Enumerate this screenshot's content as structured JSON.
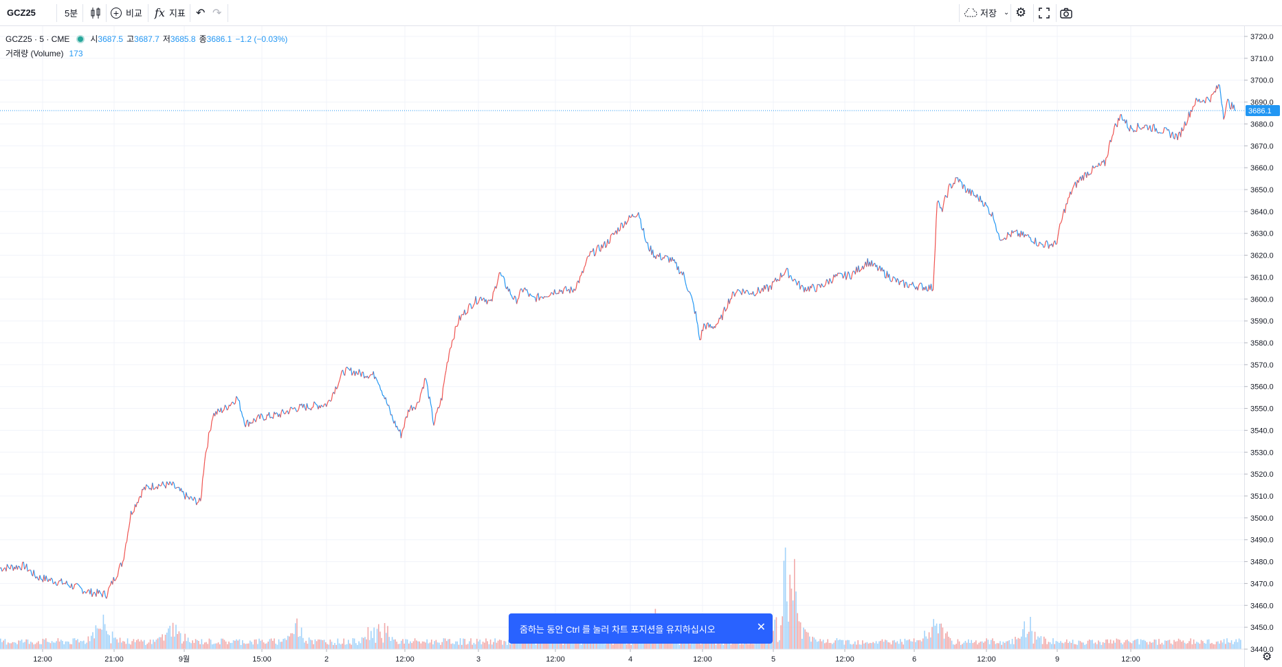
{
  "toolbar": {
    "symbol": "GCZ25",
    "interval": "5분",
    "compare_label": "비교",
    "indicators_label": "지표",
    "save_label": "저장"
  },
  "legend": {
    "title": "GCZ25 · 5 · CME",
    "open_label": "시",
    "open": "3687.5",
    "high_label": "고",
    "high": "3687.7",
    "low_label": "저",
    "low": "3685.8",
    "close_label": "종",
    "close": "3686.1",
    "change": "−1.2 (−0.03%)",
    "volume_label": "거래량 (Volume)",
    "volume": "173"
  },
  "toast": {
    "message": "줌하는 동안 Ctrl 를 눌러 차트 포지션을 유지하십시오"
  },
  "colors": {
    "up": "#ef5350",
    "down": "#2196f3",
    "accent": "#2962ff"
  },
  "chart_data": {
    "type": "line",
    "title": "GCZ25 · 5 · CME",
    "last_price": "3686.1",
    "ylim": [
      3440,
      3725
    ],
    "y_ticks": [
      3440,
      3450,
      3460,
      3470,
      3480,
      3490,
      3500,
      3510,
      3520,
      3530,
      3540,
      3550,
      3560,
      3570,
      3580,
      3590,
      3600,
      3610,
      3620,
      3630,
      3640,
      3650,
      3660,
      3670,
      3680,
      3690,
      3700,
      3710,
      3720
    ],
    "x_ticks": [
      "12:00",
      "21:00",
      "9월",
      "15:00",
      "2",
      "12:00",
      "3",
      "12:00",
      "4",
      "12:00",
      "5",
      "12:00",
      "6",
      "12:00",
      "9",
      "12:00"
    ],
    "series": [
      {
        "x": [
          0,
          30,
          45,
          80,
          110,
          130,
          150,
          160,
          175,
          190,
          210,
          230,
          245,
          250,
          260,
          275,
          290,
          300,
          320,
          340,
          360,
          380,
          400,
          420,
          430,
          440,
          460,
          480,
          490,
          500,
          510,
          520,
          530,
          540,
          545,
          550,
          560,
          570,
          580,
          590,
          600,
          610,
          620,
          630,
          640,
          650,
          660,
          680,
          700,
          710,
          720,
          740,
          760,
          780,
          790,
          800,
          820,
          835,
          845,
          850,
          855,
          860,
          870,
          880,
          890,
          900,
          920,
          940,
          960,
          980,
          1000,
          1020,
          1040,
          1060,
          1080,
          1100,
          1120,
          1140,
          1145,
          1150,
          1160,
          1170,
          1180,
          1200,
          1215,
          1220,
          1240,
          1260,
          1270,
          1280,
          1290,
          1300,
          1310,
          1320,
          1330,
          1340,
          1350,
          1360,
          1370,
          1380,
          1400,
          1420,
          1440,
          1460,
          1480,
          1490,
          1495,
          1500,
          1510
        ],
        "values": [
          3477,
          3478,
          3473,
          3470,
          3466,
          3465,
          3480,
          3502,
          3513,
          3515,
          3515,
          3509,
          3507,
          3527,
          3547,
          3550,
          3555,
          3543,
          3546,
          3547,
          3550,
          3551,
          3552,
          3567,
          3567,
          3566,
          3565,
          3545,
          3538,
          3550,
          3552,
          3564,
          3543,
          3555,
          3568,
          3578,
          3590,
          3595,
          3599,
          3601,
          3598,
          3612,
          3605,
          3599,
          3605,
          3600,
          3601,
          3604,
          3604,
          3610,
          3620,
          3625,
          3634,
          3640,
          3625,
          3620,
          3618,
          3611,
          3600,
          3593,
          3581,
          3588,
          3587,
          3590,
          3599,
          3604,
          3603,
          3605,
          3613,
          3605,
          3605,
          3610,
          3611,
          3617,
          3612,
          3607,
          3606,
          3605,
          3645,
          3640,
          3651,
          3655,
          3650,
          3645,
          3637,
          3628,
          3630,
          3628,
          3625,
          3625,
          3625,
          3640,
          3650,
          3655,
          3658,
          3660,
          3662,
          3677,
          3684,
          3678,
          3679,
          3677,
          3674,
          3690,
          3692,
          3698,
          3684,
          3690,
          3686.1
        ]
      }
    ],
    "volume": {
      "ylim_relative": true
    }
  }
}
